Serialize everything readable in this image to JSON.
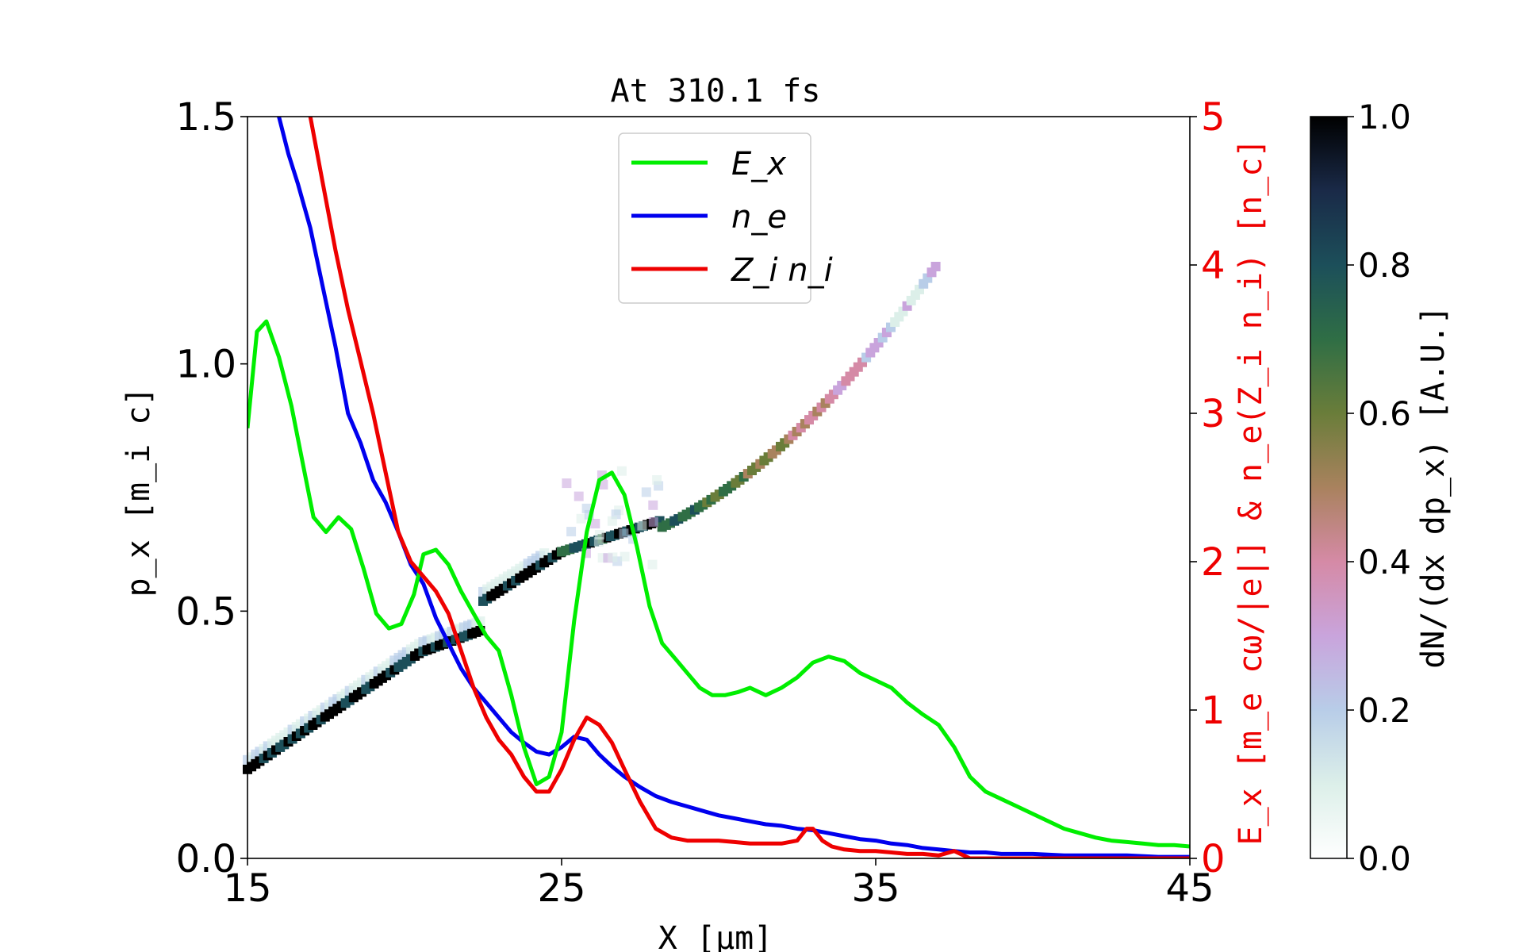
{
  "chart_data": {
    "type": "line",
    "title": "At 310.1 fs",
    "xlabel": "X [μm]",
    "ylabel": "p_x [m_i c]",
    "y2label": "E_x [m_e cω/|e|] & n_e(Z_i n_i) [n_c]",
    "colorbar_label": "dN/(dx dp_x) [A.U.]",
    "xlim": [
      15,
      45
    ],
    "ylim": [
      0,
      1.5
    ],
    "y2lim": [
      0,
      5
    ],
    "clim": [
      0,
      1
    ],
    "x_ticks": [
      "15",
      "25",
      "35",
      "45"
    ],
    "y_ticks": [
      "0.0",
      "0.5",
      "1.0",
      "1.5"
    ],
    "y2_ticks": [
      "0",
      "1",
      "2",
      "3",
      "4",
      "5"
    ],
    "colorbar_ticks": [
      "0.0",
      "0.2",
      "0.4",
      "0.6",
      "0.8",
      "1.0"
    ],
    "grid": false,
    "legend_position": "top-center",
    "series": [
      {
        "name": "E_x",
        "color": "#00ee00",
        "axis": "right",
        "x": [
          15.0,
          15.3,
          15.6,
          16.0,
          16.4,
          16.8,
          17.1,
          17.5,
          17.9,
          18.3,
          18.7,
          19.1,
          19.5,
          19.9,
          20.3,
          20.6,
          21.0,
          21.4,
          21.8,
          22.2,
          22.6,
          23.0,
          23.4,
          23.8,
          24.2,
          24.6,
          25.0,
          25.4,
          25.8,
          26.2,
          26.6,
          27.0,
          27.4,
          27.8,
          28.2,
          28.6,
          29.0,
          29.4,
          29.8,
          30.2,
          30.6,
          31.0,
          31.5,
          32.0,
          32.5,
          33.0,
          33.5,
          34.0,
          34.5,
          35.0,
          35.5,
          36.0,
          36.5,
          37.0,
          37.5,
          38.0,
          38.5,
          39.0,
          39.5,
          40.0,
          40.5,
          41.0,
          41.5,
          42.0,
          42.5,
          43.0,
          43.5,
          44.0,
          44.5,
          45.0
        ],
        "values": [
          2.9,
          3.55,
          3.62,
          3.38,
          3.05,
          2.62,
          2.3,
          2.2,
          2.3,
          2.22,
          1.95,
          1.65,
          1.55,
          1.58,
          1.78,
          2.05,
          2.08,
          1.98,
          1.8,
          1.65,
          1.5,
          1.4,
          1.1,
          0.75,
          0.5,
          0.55,
          0.85,
          1.6,
          2.2,
          2.55,
          2.6,
          2.45,
          2.1,
          1.7,
          1.45,
          1.35,
          1.25,
          1.15,
          1.1,
          1.1,
          1.12,
          1.15,
          1.1,
          1.15,
          1.22,
          1.32,
          1.36,
          1.33,
          1.25,
          1.2,
          1.15,
          1.05,
          0.97,
          0.9,
          0.75,
          0.55,
          0.45,
          0.4,
          0.35,
          0.3,
          0.25,
          0.2,
          0.17,
          0.14,
          0.12,
          0.11,
          0.1,
          0.09,
          0.09,
          0.08
        ]
      },
      {
        "name": "n_e",
        "color": "#0000ee",
        "axis": "right",
        "x": [
          16.0,
          16.3,
          16.6,
          17.0,
          17.4,
          17.8,
          18.2,
          18.6,
          19.0,
          19.4,
          19.8,
          20.2,
          20.6,
          21.0,
          21.4,
          21.8,
          22.2,
          22.6,
          23.0,
          23.4,
          23.8,
          24.2,
          24.6,
          25.0,
          25.4,
          25.8,
          26.2,
          26.6,
          27.0,
          27.5,
          28.0,
          28.5,
          29.0,
          29.5,
          30.0,
          30.5,
          31.0,
          31.5,
          32.0,
          32.5,
          33.0,
          33.5,
          34.0,
          34.5,
          35.0,
          35.5,
          36.0,
          36.5,
          37.0,
          37.5,
          38.0,
          38.5,
          39.0,
          39.5,
          40.0,
          41.0,
          42.0,
          43.0,
          44.0,
          45.0
        ],
        "values": [
          5.0,
          4.75,
          4.55,
          4.25,
          3.85,
          3.45,
          3.0,
          2.8,
          2.55,
          2.4,
          2.2,
          1.98,
          1.85,
          1.62,
          1.45,
          1.28,
          1.15,
          1.05,
          0.95,
          0.85,
          0.78,
          0.72,
          0.7,
          0.75,
          0.82,
          0.8,
          0.7,
          0.62,
          0.55,
          0.48,
          0.42,
          0.38,
          0.35,
          0.32,
          0.29,
          0.27,
          0.25,
          0.23,
          0.22,
          0.2,
          0.19,
          0.17,
          0.15,
          0.13,
          0.12,
          0.1,
          0.09,
          0.07,
          0.06,
          0.05,
          0.04,
          0.04,
          0.03,
          0.03,
          0.03,
          0.02,
          0.02,
          0.02,
          0.01,
          0.01
        ]
      },
      {
        "name": "Z_i n_i",
        "color": "#ee0000",
        "axis": "right",
        "x": [
          17.0,
          17.4,
          17.8,
          18.2,
          18.6,
          19.0,
          19.4,
          19.8,
          20.2,
          20.6,
          21.0,
          21.4,
          21.8,
          22.2,
          22.6,
          23.0,
          23.4,
          23.8,
          24.2,
          24.6,
          25.0,
          25.4,
          25.8,
          26.2,
          26.6,
          27.0,
          27.5,
          28.0,
          28.5,
          29.0,
          29.5,
          30.0,
          30.5,
          31.0,
          31.5,
          32.0,
          32.5,
          32.8,
          33.0,
          33.3,
          33.6,
          34.0,
          34.5,
          35.0,
          35.5,
          36.0,
          36.5,
          37.0,
          37.5,
          38.0,
          39.0,
          40.0,
          41.0,
          42.0,
          43.0,
          44.0,
          45.0
        ],
        "values": [
          5.0,
          4.55,
          4.1,
          3.7,
          3.35,
          3.0,
          2.6,
          2.2,
          2.0,
          1.9,
          1.8,
          1.65,
          1.4,
          1.15,
          0.95,
          0.8,
          0.7,
          0.55,
          0.45,
          0.45,
          0.6,
          0.8,
          0.95,
          0.9,
          0.78,
          0.6,
          0.38,
          0.2,
          0.14,
          0.12,
          0.12,
          0.12,
          0.11,
          0.1,
          0.1,
          0.1,
          0.12,
          0.2,
          0.2,
          0.12,
          0.08,
          0.06,
          0.05,
          0.05,
          0.04,
          0.03,
          0.03,
          0.02,
          0.05,
          0.0,
          0.0,
          0.0,
          0.0,
          0.0,
          0.0,
          0.0,
          0.0
        ]
      }
    ]
  }
}
